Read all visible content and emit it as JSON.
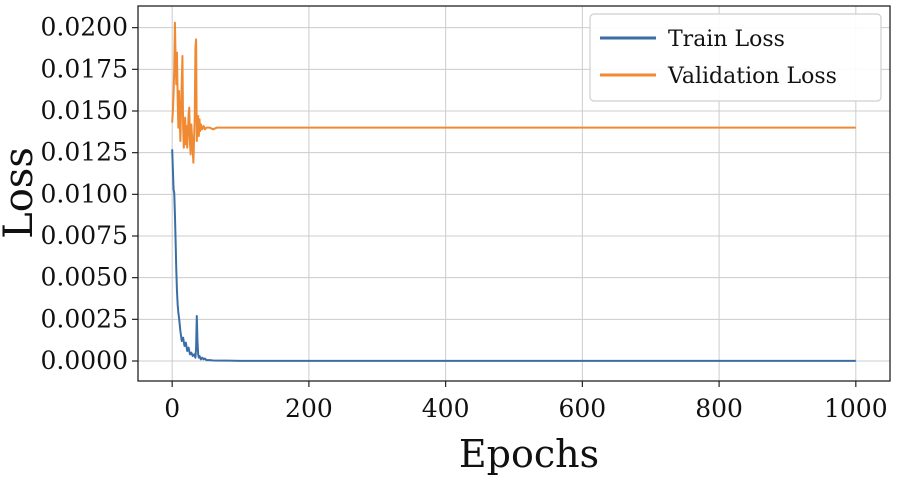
{
  "chart_data": {
    "type": "line",
    "xlabel": "Epochs",
    "ylabel": "Loss",
    "xlim": [
      -50,
      1050
    ],
    "ylim": [
      -0.0012,
      0.0213
    ],
    "grid": true,
    "legend_position": "top-right",
    "x_ticks": [
      0,
      200,
      400,
      600,
      800,
      1000
    ],
    "x_tick_labels": [
      "0",
      "200",
      "400",
      "600",
      "800",
      "1000"
    ],
    "y_ticks": [
      0,
      0.0025,
      0.005,
      0.0075,
      0.01,
      0.0125,
      0.015,
      0.0175,
      0.02
    ],
    "y_tick_labels": [
      "0.0000",
      "0.0025",
      "0.0050",
      "0.0075",
      "0.0100",
      "0.0125",
      "0.0150",
      "0.0175",
      "0.0200"
    ],
    "series": [
      {
        "name": "Train Loss",
        "color": "#3a6ea5",
        "x": [
          0,
          1,
          2,
          3,
          4,
          5,
          6,
          7,
          8,
          9,
          10,
          12,
          14,
          16,
          18,
          20,
          22,
          24,
          26,
          28,
          30,
          32,
          34,
          35,
          36,
          37,
          38,
          39,
          40,
          42,
          44,
          46,
          48,
          50,
          55,
          60,
          70,
          80,
          100,
          150,
          200,
          300,
          400,
          500,
          600,
          700,
          800,
          900,
          1000
        ],
        "y": [
          0.0127,
          0.0115,
          0.0103,
          0.0101,
          0.0088,
          0.0072,
          0.0055,
          0.0042,
          0.0034,
          0.0029,
          0.0026,
          0.0018,
          0.0012,
          0.0014,
          0.0009,
          0.0011,
          0.0006,
          0.0008,
          0.0004,
          0.0005,
          0.0003,
          0.0004,
          0.0002,
          0.0008,
          0.0027,
          0.0012,
          0.0004,
          0.0002,
          0.0003,
          0.0001,
          0.0002,
          0.0001,
          0.00015,
          5e-05,
          5e-05,
          3e-05,
          2e-05,
          2e-05,
          1e-05,
          1e-05,
          1e-05,
          1e-05,
          1e-05,
          1e-05,
          1e-05,
          1e-05,
          1e-05,
          1e-05,
          1e-05
        ]
      },
      {
        "name": "Validation Loss",
        "color": "#ef8a33",
        "x": [
          0,
          1,
          2,
          3,
          4,
          5,
          6,
          7,
          8,
          9,
          10,
          11,
          12,
          13,
          14,
          15,
          16,
          17,
          18,
          19,
          20,
          21,
          22,
          23,
          24,
          25,
          26,
          27,
          28,
          29,
          30,
          31,
          32,
          33,
          34,
          35,
          36,
          37,
          38,
          39,
          40,
          41,
          42,
          44,
          46,
          48,
          50,
          55,
          60,
          65,
          70,
          80,
          90,
          100,
          150,
          200,
          300,
          400,
          500,
          600,
          700,
          800,
          900,
          1000
        ],
        "y": [
          0.0143,
          0.015,
          0.016,
          0.0175,
          0.0203,
          0.0182,
          0.0166,
          0.0185,
          0.0158,
          0.014,
          0.0162,
          0.0145,
          0.0132,
          0.0151,
          0.0168,
          0.0183,
          0.014,
          0.0128,
          0.0135,
          0.0146,
          0.013,
          0.0141,
          0.0128,
          0.0137,
          0.0148,
          0.0152,
          0.0131,
          0.0124,
          0.0142,
          0.0135,
          0.0127,
          0.0119,
          0.0133,
          0.0146,
          0.0188,
          0.0193,
          0.0132,
          0.0141,
          0.0147,
          0.0135,
          0.0145,
          0.0138,
          0.0142,
          0.0139,
          0.0141,
          0.0139,
          0.014,
          0.014,
          0.0139,
          0.014,
          0.014,
          0.014,
          0.014,
          0.014,
          0.014,
          0.014,
          0.014,
          0.014,
          0.014,
          0.014,
          0.014,
          0.014,
          0.014,
          0.014
        ]
      }
    ]
  }
}
